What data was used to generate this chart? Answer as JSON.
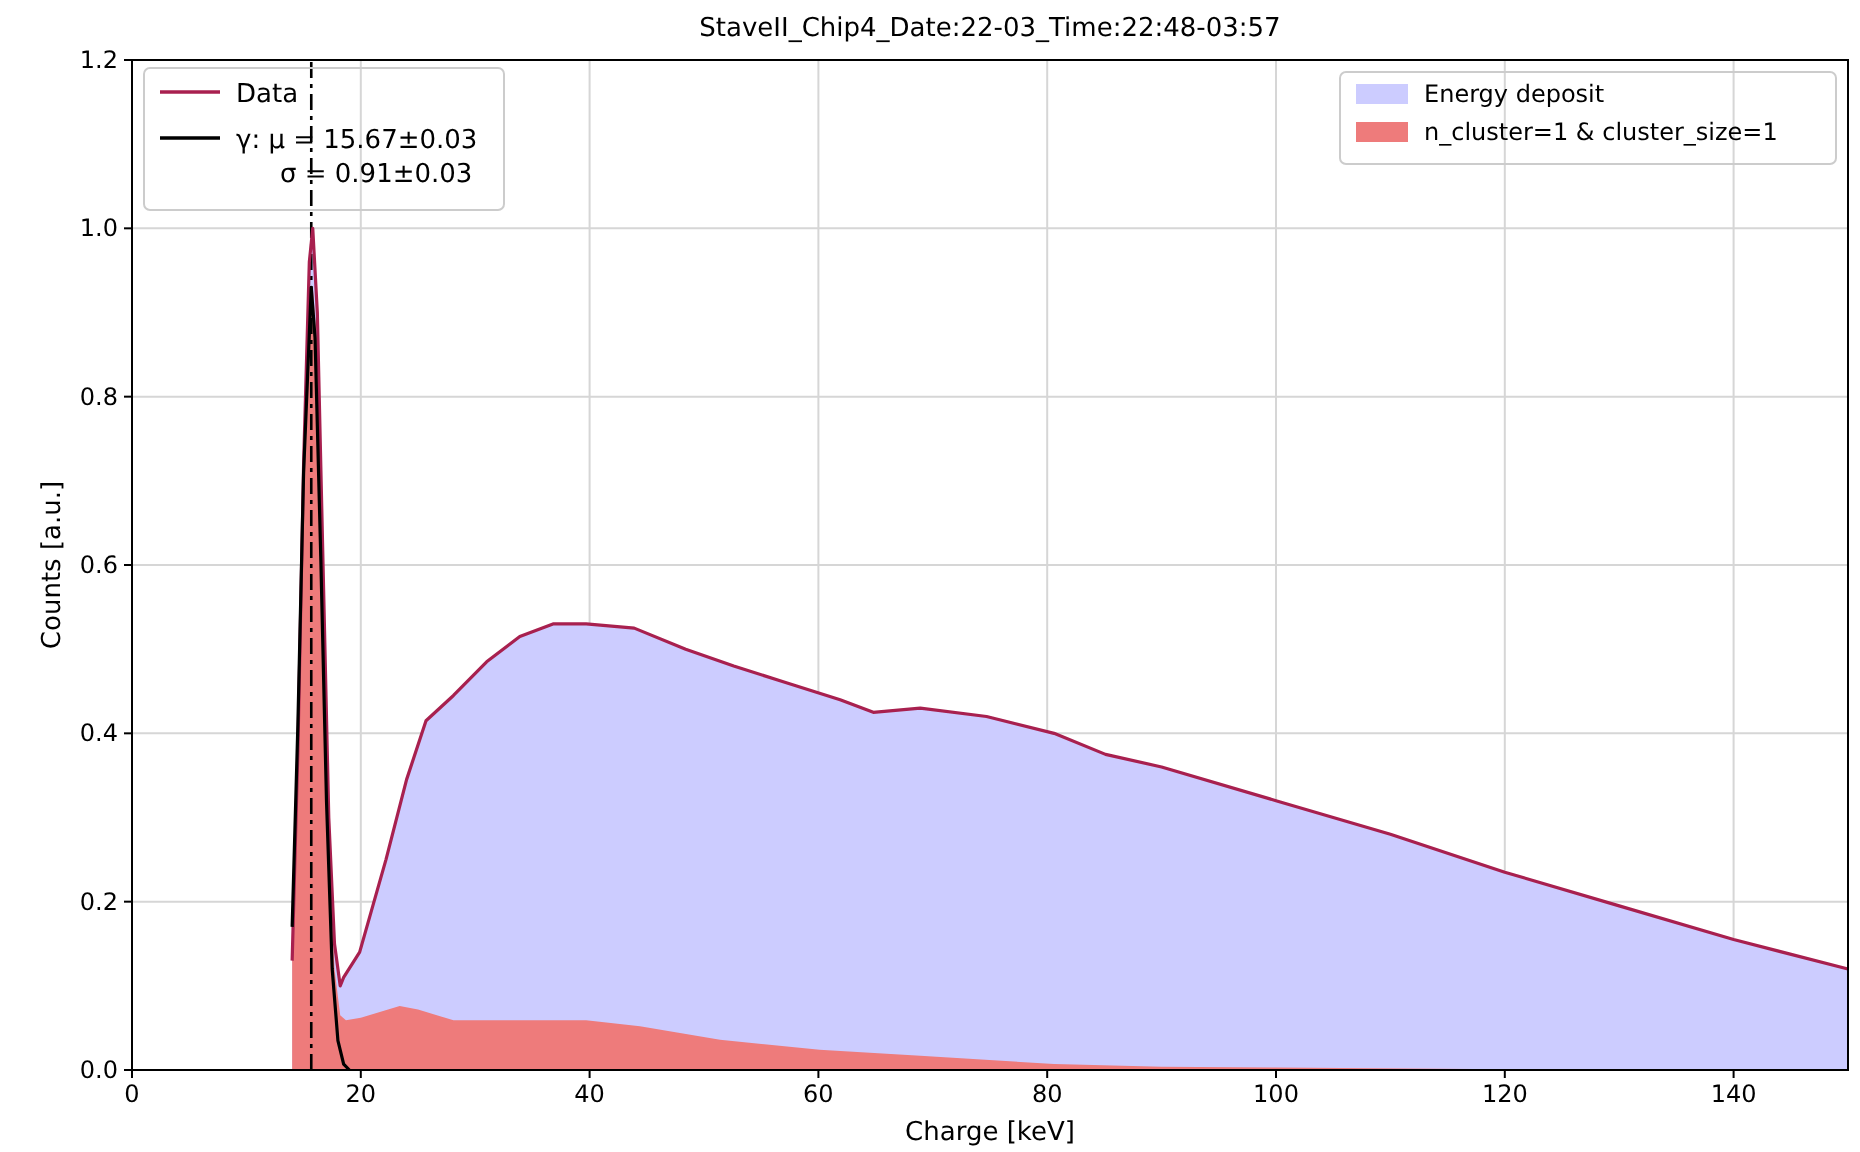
{
  "chart_data": {
    "type": "area",
    "title": "StaveII_Chip4_Date:22-03_Time:22:48-03:57",
    "xlabel": "Charge [keV]",
    "ylabel": "Counts [a.u.]",
    "xlim": [
      0,
      150
    ],
    "xticks": [
      0,
      20,
      40,
      60,
      80,
      100,
      120,
      140
    ],
    "ylim": [
      0,
      1.2
    ],
    "yticks": [
      {
        "value": 0,
        "label": "0.0"
      },
      {
        "value": 0.2,
        "label": "0.2"
      },
      {
        "value": 0.4,
        "label": "0.4"
      },
      {
        "value": 0.6,
        "label": "0.6"
      },
      {
        "value": 0.8,
        "label": "0.8"
      },
      {
        "value": 1,
        "label": "1.0"
      },
      {
        "value": 1.2,
        "label": "1.2"
      }
    ],
    "grid": true,
    "legend": "top right",
    "series": [
      {
        "name": "Energy deposit",
        "color": "#ccccff",
        "x": [
          14,
          14.5,
          15,
          15.5,
          15.8,
          16.2,
          16.7,
          17.2,
          17.7,
          18.2,
          18.5,
          19.9,
          22.2,
          24,
          25.7,
          28.1,
          31,
          33.9,
          36.8,
          39.7,
          43.9,
          48.4,
          52.6,
          57.2,
          61.9,
          64.8,
          68.9,
          74.7,
          80.6,
          85.1,
          90,
          100,
          110,
          120,
          130,
          140,
          150
        ],
        "values": [
          0.13,
          0.38,
          0.72,
          0.96,
          1.0,
          0.9,
          0.6,
          0.3,
          0.15,
          0.1,
          0.11,
          0.14,
          0.25,
          0.345,
          0.415,
          0.445,
          0.485,
          0.515,
          0.53,
          0.53,
          0.525,
          0.5,
          0.48,
          0.46,
          0.44,
          0.425,
          0.43,
          0.42,
          0.4,
          0.375,
          0.36,
          0.32,
          0.28,
          0.235,
          0.195,
          0.155,
          0.12
        ]
      },
      {
        "name": "n_cluster=1 & cluster_size=1",
        "color": "#ee7b7b",
        "x": [
          14,
          14.5,
          15,
          15.5,
          15.8,
          16.2,
          16.7,
          17.2,
          17.7,
          18.2,
          18.7,
          20,
          23.4,
          25,
          28.1,
          33.9,
          39.7,
          44.4,
          51.4,
          60.1,
          68.9,
          80.6,
          90,
          100,
          120,
          150
        ],
        "values": [
          0.13,
          0.36,
          0.7,
          0.92,
          0.93,
          0.86,
          0.55,
          0.27,
          0.12,
          0.065,
          0.059,
          0.062,
          0.076,
          0.072,
          0.059,
          0.059,
          0.059,
          0.052,
          0.036,
          0.024,
          0.017,
          0.007,
          0.004,
          0.003,
          0.001,
          0
        ]
      },
      {
        "name": "Data",
        "type": "line",
        "color": "#a8204f",
        "x": [
          14,
          14.5,
          15,
          15.5,
          15.8,
          16.2,
          16.7,
          17.2,
          17.7,
          18.2,
          18.5,
          19.9,
          22.2,
          24,
          25.7,
          28.1,
          31,
          33.9,
          36.8,
          39.7,
          43.9,
          48.4,
          52.6,
          57.2,
          61.9,
          64.8,
          68.9,
          74.7,
          80.6,
          85.1,
          90,
          100,
          110,
          120,
          130,
          140,
          150
        ],
        "values": [
          0.13,
          0.38,
          0.72,
          0.96,
          1.0,
          0.9,
          0.6,
          0.3,
          0.15,
          0.1,
          0.11,
          0.14,
          0.25,
          0.345,
          0.415,
          0.445,
          0.485,
          0.515,
          0.53,
          0.53,
          0.525,
          0.5,
          0.48,
          0.46,
          0.44,
          0.425,
          0.43,
          0.42,
          0.4,
          0.375,
          0.36,
          0.32,
          0.28,
          0.235,
          0.195,
          0.155,
          0.12
        ]
      },
      {
        "name": "γ:  μ = 15.67±0.03\nσ = 0.91±0.03",
        "type": "line",
        "color": "#000000",
        "x": [
          14,
          14.5,
          15,
          15.67,
          16,
          16.5,
          17,
          17.5,
          18,
          18.5,
          19
        ],
        "values": [
          0.17,
          0.41,
          0.71,
          0.93,
          0.87,
          0.61,
          0.32,
          0.12,
          0.035,
          0.007,
          0
        ]
      }
    ],
    "ref_lines": [
      {
        "axis": "x",
        "value": 15.67,
        "color": "#000000",
        "line_style": "dashed"
      }
    ]
  }
}
